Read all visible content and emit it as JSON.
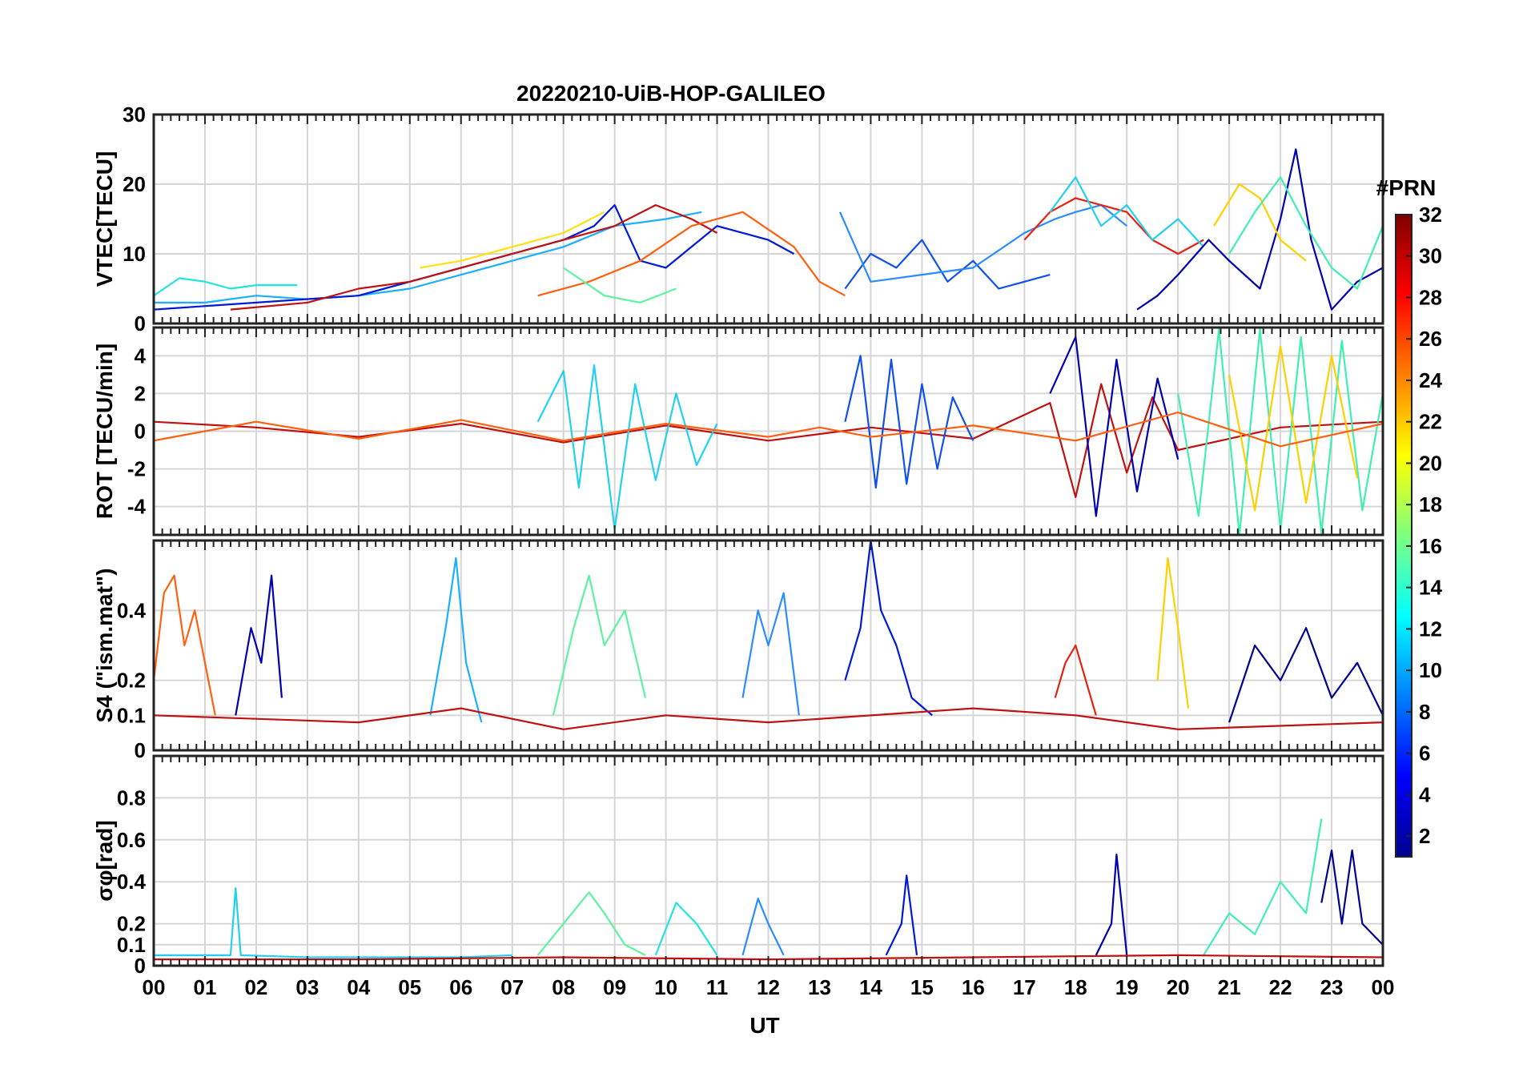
{
  "chart_data": {
    "type": "line",
    "title": "20220210-UiB-HOP-GALILEO",
    "xlabel": "UT",
    "x_ticks": [
      "00",
      "01",
      "02",
      "03",
      "04",
      "05",
      "06",
      "07",
      "08",
      "09",
      "10",
      "11",
      "12",
      "13",
      "14",
      "15",
      "16",
      "17",
      "18",
      "19",
      "20",
      "21",
      "22",
      "23",
      "00"
    ],
    "xlim": [
      0,
      24
    ],
    "colorbar": {
      "title": "#PRN",
      "range": [
        1,
        32
      ],
      "ticks": [
        "2",
        "4",
        "6",
        "8",
        "10",
        "12",
        "14",
        "16",
        "18",
        "20",
        "22",
        "24",
        "26",
        "28",
        "30",
        "32"
      ],
      "colormap": "jet"
    },
    "panels": [
      {
        "id": "vtec",
        "ylabel": "VTEC[TECU]",
        "ylim": [
          0,
          30
        ],
        "yticks": [
          0,
          10,
          20,
          30
        ],
        "ytick_labels": [
          "0",
          "10",
          "20",
          "30"
        ],
        "series": [
          {
            "prn": 13,
            "color": "#21e5e0",
            "x": [
              0,
              0.5,
              1.0,
              1.5,
              2.0,
              2.8
            ],
            "y": [
              4,
              6.5,
              6,
              5,
              5.5,
              5.5
            ]
          },
          {
            "prn": 10,
            "color": "#1ab0ff",
            "x": [
              0,
              1,
              2,
              3,
              4,
              5,
              6,
              7,
              8,
              9,
              10,
              10.7
            ],
            "y": [
              3,
              3,
              4,
              3.5,
              4,
              5,
              7,
              9,
              11,
              14,
              15,
              16
            ]
          },
          {
            "prn": 3,
            "color": "#0018d8",
            "x": [
              0,
              2,
              4,
              5,
              6,
              7,
              8,
              8.6,
              9.0,
              9.5,
              10,
              11,
              12,
              12.5
            ],
            "y": [
              2,
              3,
              4,
              6,
              8,
              10,
              12,
              14,
              17,
              9,
              8,
              14,
              12,
              10
            ]
          },
          {
            "prn": 30,
            "color": "#c01010",
            "x": [
              1.5,
              3,
              4,
              5,
              6,
              7,
              8,
              9,
              9.8,
              10.5,
              11
            ],
            "y": [
              2,
              3,
              5,
              6,
              8,
              10,
              12,
              14,
              17,
              15,
              13
            ]
          },
          {
            "prn": 25,
            "color": "#ff6010",
            "x": [
              7.5,
              8.5,
              9.5,
              10.5,
              11.5,
              12.5,
              13.0,
              13.5
            ],
            "y": [
              4,
              6,
              9,
              14,
              16,
              11,
              6,
              4
            ]
          },
          {
            "prn": 20,
            "color": "#ffe010",
            "x": [
              5.2,
              6,
              7,
              8,
              8.8
            ],
            "y": [
              8,
              9,
              11,
              13,
              16
            ]
          },
          {
            "prn": 16,
            "color": "#5ef3a0",
            "x": [
              8,
              8.8,
              9.5,
              10.2
            ],
            "y": [
              8,
              4,
              3,
              5
            ]
          },
          {
            "prn": 7,
            "color": "#1050f0",
            "x": [
              13.5,
              14,
              14.5,
              15,
              15.5,
              16,
              16.5,
              17,
              17.5
            ],
            "y": [
              5,
              10,
              8,
              12,
              6,
              9,
              5,
              6,
              7
            ]
          },
          {
            "prn": 9,
            "color": "#2a8cff",
            "x": [
              13.4,
              14,
              15,
              16,
              17,
              17.6,
              18,
              18.5,
              19
            ],
            "y": [
              16,
              6,
              7,
              8,
              13,
              15,
              16,
              17,
              14
            ]
          },
          {
            "prn": 28,
            "color": "#e82010",
            "x": [
              17.0,
              17.5,
              18.0,
              18.5,
              19.0,
              19.5,
              20.0,
              20.5
            ],
            "y": [
              12,
              16,
              18,
              17,
              16,
              12,
              10,
              12
            ]
          },
          {
            "prn": 12,
            "color": "#22d0f0",
            "x": [
              17.5,
              18,
              18.5,
              19,
              19.5,
              20,
              20.5
            ],
            "y": [
              16,
              21,
              14,
              17,
              12,
              15,
              11
            ]
          },
          {
            "prn": 2,
            "color": "#0000b0",
            "x": [
              19.2,
              19.6,
              20,
              20.6,
              21,
              21.6,
              22.0,
              22.3,
              22.6,
              23.0,
              23.5,
              24
            ],
            "y": [
              2,
              4,
              7,
              12,
              9,
              5,
              15,
              25,
              12,
              2,
              6,
              8
            ]
          },
          {
            "prn": 19,
            "color": "#ffd000",
            "x": [
              20.7,
              21.2,
              21.6,
              22.0,
              22.5
            ],
            "y": [
              14,
              20,
              18,
              12,
              9
            ]
          },
          {
            "prn": 15,
            "color": "#40f0b0",
            "x": [
              21,
              21.5,
              22,
              22.5,
              23,
              23.5,
              24
            ],
            "y": [
              10,
              16,
              21,
              14,
              8,
              5,
              14
            ]
          }
        ]
      },
      {
        "id": "rot",
        "ylabel": "ROT [TECU/min]",
        "ylim": [
          -5.5,
          5.5
        ],
        "yticks": [
          -4,
          -2,
          0,
          2,
          4
        ],
        "ytick_labels": [
          "-4",
          "-2",
          "0",
          "2",
          "4"
        ],
        "series": [
          {
            "prn": 30,
            "color": "#c01010",
            "x": [
              0,
              2,
              4,
              6,
              8,
              10,
              12,
              14,
              16,
              17.5,
              18,
              18.5,
              19,
              19.5,
              20,
              22,
              24
            ],
            "y": [
              0.5,
              0.2,
              -0.3,
              0.4,
              -0.6,
              0.3,
              -0.5,
              0.2,
              -0.4,
              1.5,
              -3.5,
              2.5,
              -2.2,
              1.8,
              -1.0,
              0.2,
              0.5
            ]
          },
          {
            "prn": 12,
            "color": "#22d0f0",
            "x": [
              7.5,
              8,
              8.3,
              8.6,
              9,
              9.4,
              9.8,
              10.2,
              10.6,
              11
            ],
            "y": [
              0.5,
              3.2,
              -3.0,
              3.5,
              -5.2,
              2.5,
              -2.6,
              2.0,
              -1.8,
              0.4
            ]
          },
          {
            "prn": 7,
            "color": "#1050f0",
            "x": [
              13.5,
              13.8,
              14.1,
              14.4,
              14.7,
              15,
              15.3,
              15.6,
              16
            ],
            "y": [
              0.5,
              4.0,
              -3.0,
              3.8,
              -2.8,
              2.5,
              -2.0,
              1.8,
              -0.5
            ]
          },
          {
            "prn": 2,
            "color": "#0000b0",
            "x": [
              17.5,
              18,
              18.4,
              18.8,
              19.2,
              19.6,
              20
            ],
            "y": [
              2,
              5.0,
              -4.5,
              3.8,
              -3.2,
              2.8,
              -1.5
            ]
          },
          {
            "prn": 15,
            "color": "#40f0b0",
            "x": [
              20,
              20.4,
              20.8,
              21.2,
              21.6,
              22,
              22.4,
              22.8,
              23.2,
              23.6,
              24
            ],
            "y": [
              2,
              -4.5,
              5.4,
              -5.5,
              5.4,
              -5.2,
              5.0,
              -5.4,
              4.8,
              -4.2,
              2
            ]
          },
          {
            "prn": 19,
            "color": "#ffd000",
            "x": [
              21,
              21.5,
              22,
              22.5,
              23,
              23.5
            ],
            "y": [
              3,
              -4.2,
              4.5,
              -3.8,
              4.0,
              -2.5
            ]
          },
          {
            "prn": 25,
            "color": "#ff6010",
            "x": [
              0,
              2,
              4,
              6,
              8,
              10,
              12,
              13,
              14,
              16,
              18,
              20,
              22,
              24
            ],
            "y": [
              -0.5,
              0.5,
              -0.4,
              0.6,
              -0.5,
              0.4,
              -0.3,
              0.2,
              -0.3,
              0.3,
              -0.5,
              1.0,
              -0.8,
              0.4
            ]
          }
        ]
      },
      {
        "id": "s4",
        "ylabel": "S4 (\"ism.mat\")",
        "ylim": [
          0,
          0.6
        ],
        "yticks": [
          0,
          0.1,
          0.2,
          0.4
        ],
        "ytick_labels": [
          "0",
          "0.1",
          "0.2",
          "0.4"
        ],
        "series": [
          {
            "prn": 25,
            "color": "#ff6010",
            "x": [
              0,
              0.2,
              0.4,
              0.6,
              0.8,
              1.0,
              1.2
            ],
            "y": [
              0.2,
              0.45,
              0.5,
              0.3,
              0.4,
              0.25,
              0.1
            ]
          },
          {
            "prn": 2,
            "color": "#0000b0",
            "x": [
              1.6,
              1.9,
              2.1,
              2.3,
              2.5
            ],
            "y": [
              0.1,
              0.35,
              0.25,
              0.5,
              0.15
            ]
          },
          {
            "prn": 10,
            "color": "#1ab0ff",
            "x": [
              5.4,
              5.7,
              5.9,
              6.1,
              6.4
            ],
            "y": [
              0.1,
              0.35,
              0.55,
              0.25,
              0.08
            ]
          },
          {
            "prn": 16,
            "color": "#5ef3a0",
            "x": [
              7.8,
              8.2,
              8.5,
              8.8,
              9.2,
              9.6
            ],
            "y": [
              0.1,
              0.35,
              0.5,
              0.3,
              0.4,
              0.15
            ]
          },
          {
            "prn": 8,
            "color": "#2a8cff",
            "x": [
              11.5,
              11.8,
              12.0,
              12.3,
              12.6
            ],
            "y": [
              0.15,
              0.4,
              0.3,
              0.45,
              0.1
            ]
          },
          {
            "prn": 3,
            "color": "#0018d8",
            "x": [
              13.5,
              13.8,
              14.0,
              14.2,
              14.5,
              14.8,
              15.2
            ],
            "y": [
              0.2,
              0.35,
              0.6,
              0.4,
              0.3,
              0.15,
              0.1
            ]
          },
          {
            "prn": 28,
            "color": "#e82010",
            "x": [
              17.6,
              17.8,
              18.0,
              18.2,
              18.4
            ],
            "y": [
              0.15,
              0.25,
              0.3,
              0.2,
              0.1
            ]
          },
          {
            "prn": 19,
            "color": "#ffd000",
            "x": [
              19.6,
              19.8,
              20.0,
              20.2
            ],
            "y": [
              0.2,
              0.55,
              0.35,
              0.12
            ]
          },
          {
            "prn": 1,
            "color": "#00008f",
            "x": [
              21,
              21.5,
              22,
              22.5,
              23,
              23.5,
              24
            ],
            "y": [
              0.08,
              0.3,
              0.2,
              0.35,
              0.15,
              0.25,
              0.1
            ]
          },
          {
            "prn": 30,
            "color": "#c01010",
            "x": [
              0,
              4,
              6,
              8,
              10,
              12,
              16,
              18,
              20,
              24
            ],
            "y": [
              0.1,
              0.08,
              0.12,
              0.06,
              0.1,
              0.08,
              0.12,
              0.1,
              0.06,
              0.08
            ]
          }
        ]
      },
      {
        "id": "sigma",
        "ylabel": "σφ[rad]",
        "ylim": [
          0,
          1.0
        ],
        "yticks": [
          0,
          0.1,
          0.2,
          0.4,
          0.6,
          0.8
        ],
        "ytick_labels": [
          "0",
          "0.1",
          "0.2",
          "0.4",
          "0.6",
          "0.8"
        ],
        "series": [
          {
            "prn": 12,
            "color": "#22d0f0",
            "x": [
              0,
              1.5,
              1.6,
              1.7,
              3,
              6,
              7
            ],
            "y": [
              0.05,
              0.05,
              0.37,
              0.05,
              0.04,
              0.04,
              0.05
            ]
          },
          {
            "prn": 16,
            "color": "#5ef3a0",
            "x": [
              7.5,
              8.0,
              8.5,
              8.8,
              9.2,
              9.6
            ],
            "y": [
              0.05,
              0.2,
              0.35,
              0.25,
              0.1,
              0.05
            ]
          },
          {
            "prn": 13,
            "color": "#21e5e0",
            "x": [
              9.8,
              10.2,
              10.6,
              11.0
            ],
            "y": [
              0.05,
              0.3,
              0.2,
              0.05
            ]
          },
          {
            "prn": 8,
            "color": "#2a8cff",
            "x": [
              11.5,
              11.8,
              12.0,
              12.3
            ],
            "y": [
              0.05,
              0.32,
              0.2,
              0.05
            ]
          },
          {
            "prn": 3,
            "color": "#0018d8",
            "x": [
              14.3,
              14.6,
              14.7,
              14.9
            ],
            "y": [
              0.05,
              0.2,
              0.43,
              0.05
            ]
          },
          {
            "prn": 2,
            "color": "#0000b0",
            "x": [
              18.4,
              18.7,
              18.8,
              19.0
            ],
            "y": [
              0.05,
              0.2,
              0.53,
              0.05
            ]
          },
          {
            "prn": 15,
            "color": "#40f0b0",
            "x": [
              20.5,
              21,
              21.5,
              22,
              22.5,
              22.8
            ],
            "y": [
              0.05,
              0.25,
              0.15,
              0.4,
              0.25,
              0.7
            ]
          },
          {
            "prn": 1,
            "color": "#00008f",
            "x": [
              22.8,
              23.0,
              23.2,
              23.4,
              23.6,
              24
            ],
            "y": [
              0.3,
              0.55,
              0.2,
              0.55,
              0.2,
              0.1
            ]
          },
          {
            "prn": 30,
            "color": "#c01010",
            "x": [
              0,
              4,
              8,
              12,
              16,
              20,
              24
            ],
            "y": [
              0.03,
              0.03,
              0.04,
              0.03,
              0.04,
              0.05,
              0.04
            ]
          }
        ]
      }
    ]
  }
}
